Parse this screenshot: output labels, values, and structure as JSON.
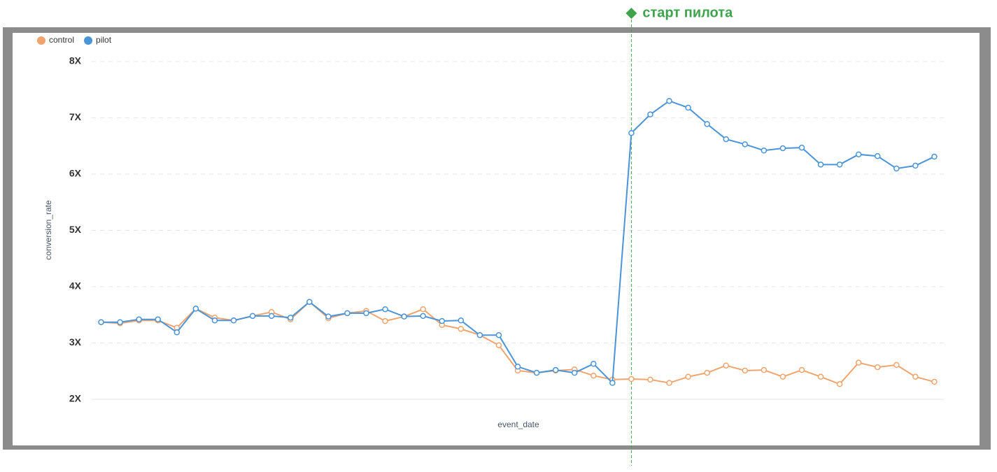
{
  "chart_data": {
    "type": "line",
    "y_label": "conversion_rate",
    "x_label": "event_date",
    "categories": [
      null,
      null,
      null,
      null,
      null,
      null,
      null,
      null,
      null,
      null,
      null,
      null,
      null,
      null,
      null,
      null,
      null,
      null,
      null,
      null,
      null,
      null,
      null,
      null,
      null,
      null,
      null,
      null,
      null,
      null,
      null,
      null,
      null,
      null,
      null,
      null,
      null,
      null,
      null,
      null,
      null,
      null,
      null,
      null,
      null
    ],
    "series": [
      {
        "name": "control",
        "color": "#f0a46e",
        "values": [
          3.37,
          3.35,
          3.4,
          3.4,
          3.27,
          3.61,
          3.45,
          3.4,
          3.48,
          3.55,
          3.42,
          3.73,
          3.44,
          3.53,
          3.57,
          3.39,
          3.47,
          3.6,
          3.32,
          3.25,
          3.14,
          2.96,
          2.51,
          2.47,
          2.51,
          2.53,
          2.42,
          2.35,
          2.36,
          2.35,
          2.29,
          2.4,
          2.47,
          2.6,
          2.51,
          2.52,
          2.4,
          2.52,
          2.4,
          2.27,
          2.65,
          2.57,
          2.61,
          2.4,
          2.31
        ]
      },
      {
        "name": "pilot",
        "color": "#4a94d8",
        "values": [
          3.37,
          3.37,
          3.42,
          3.42,
          3.19,
          3.61,
          3.4,
          3.4,
          3.48,
          3.48,
          3.45,
          3.73,
          3.47,
          3.53,
          3.53,
          3.6,
          3.47,
          3.48,
          3.39,
          3.4,
          3.14,
          3.14,
          2.58,
          2.47,
          2.52,
          2.47,
          2.63,
          2.29,
          6.73,
          7.06,
          7.3,
          7.18,
          6.89,
          6.62,
          6.53,
          6.42,
          6.46,
          6.47,
          6.17,
          6.17,
          6.35,
          6.32,
          6.1,
          6.15,
          6.31
        ]
      }
    ],
    "ylim": [
      2,
      8
    ],
    "yticks": [
      {
        "value": 2,
        "label": "2X"
      },
      {
        "value": 3,
        "label": "3X"
      },
      {
        "value": 4,
        "label": "4X"
      },
      {
        "value": 5,
        "label": "5X"
      },
      {
        "value": 6,
        "label": "6X"
      },
      {
        "value": 7,
        "label": "7X"
      },
      {
        "value": 8,
        "label": "8X"
      }
    ],
    "grid": true,
    "legend": "top-left",
    "annotations": [
      {
        "text": "старт пилота",
        "category_index": 28,
        "color": "#3fa34d"
      }
    ]
  }
}
